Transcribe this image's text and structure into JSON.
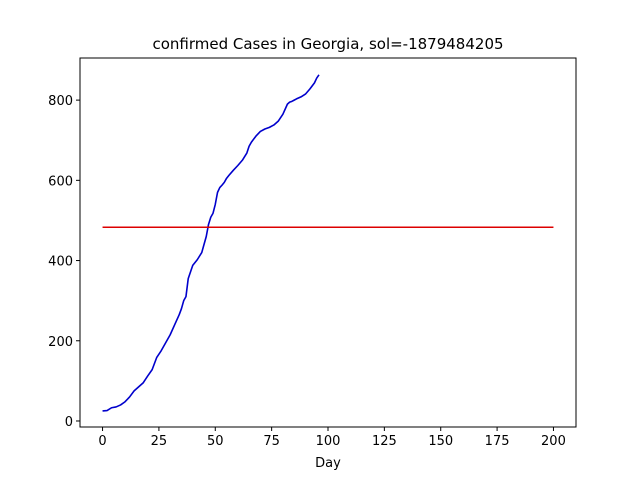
{
  "chart_data": {
    "type": "line",
    "title": "confirmed Cases in Georgia, sol=-1879484205",
    "xlabel": "Day",
    "ylabel": "",
    "xlim": [
      -10,
      210
    ],
    "ylim": [
      -15,
      905
    ],
    "xticks": [
      0,
      25,
      50,
      75,
      100,
      125,
      150,
      175,
      200
    ],
    "yticks": [
      0,
      200,
      400,
      600,
      800
    ],
    "grid": false,
    "series": [
      {
        "color": "#0000cc",
        "x": [
          0,
          2,
          4,
          6,
          8,
          10,
          12,
          14,
          16,
          18,
          20,
          22,
          24,
          26,
          28,
          30,
          32,
          34,
          35,
          36,
          37,
          38,
          40,
          42,
          44,
          45,
          46,
          47,
          48,
          49,
          50,
          51,
          52,
          53,
          54,
          55,
          56,
          58,
          60,
          62,
          64,
          65,
          66,
          68,
          70,
          72,
          74,
          76,
          78,
          80,
          82,
          83,
          84,
          85,
          86,
          88,
          90,
          92,
          94,
          95,
          96
        ],
        "y": [
          25,
          26,
          33,
          35,
          40,
          48,
          60,
          75,
          85,
          95,
          112,
          128,
          158,
          175,
          195,
          215,
          240,
          265,
          280,
          300,
          310,
          355,
          388,
          402,
          420,
          440,
          460,
          490,
          508,
          518,
          540,
          570,
          582,
          588,
          595,
          605,
          612,
          625,
          637,
          650,
          668,
          685,
          695,
          710,
          722,
          728,
          732,
          738,
          748,
          765,
          790,
          795,
          797,
          800,
          803,
          808,
          815,
          828,
          843,
          855,
          863
        ]
      },
      {
        "color": "#dd0000",
        "x": [
          0,
          200
        ],
        "y": [
          483,
          483
        ]
      }
    ]
  }
}
